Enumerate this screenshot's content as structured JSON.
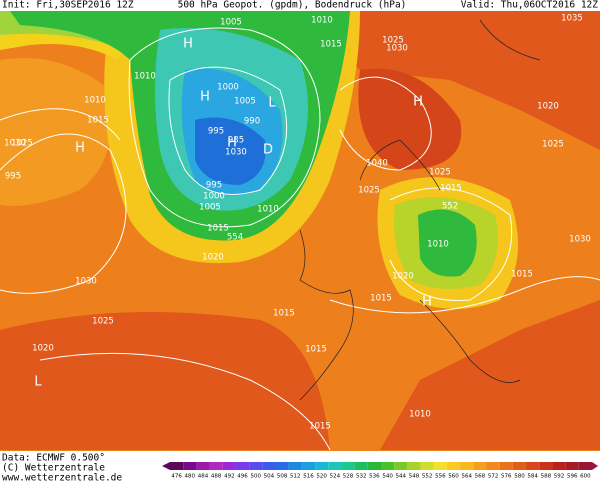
{
  "header": {
    "init": "Init: Fri,30SEP2016 12Z",
    "title": "500 hPa Geopot. (gpdm), Bodendruck (hPa)",
    "valid": "Valid: Thu,06OCT2016 12Z"
  },
  "footer": {
    "data": "Data: ECMWF  0.500°",
    "copyright": "(C) Wetterzentrale",
    "url": "www.wetterzentrale.de"
  },
  "isobar_labels": [
    1005,
    1010,
    1015,
    1025,
    1030,
    1035,
    1010,
    1010,
    1015,
    1030,
    995,
    1000,
    1005,
    990,
    995,
    985,
    995,
    1000,
    1005,
    1010,
    1015,
    554,
    1020,
    1030,
    1025,
    1020,
    1030,
    1025,
    1020,
    1015,
    1040,
    1025,
    1025,
    1015,
    552,
    1010,
    1020,
    1015,
    1015,
    1015,
    1010,
    1015,
    1030,
    1025
  ],
  "pressure_centers": [
    "H",
    "H",
    "L",
    "D",
    "H",
    "H",
    "H",
    "H",
    "L"
  ],
  "colorbar": [
    476,
    480,
    484,
    488,
    492,
    496,
    500,
    504,
    508,
    512,
    516,
    520,
    524,
    528,
    532,
    536,
    540,
    544,
    548,
    552,
    556,
    560,
    564,
    568,
    572,
    576,
    580,
    584,
    588,
    592,
    596,
    600
  ]
}
